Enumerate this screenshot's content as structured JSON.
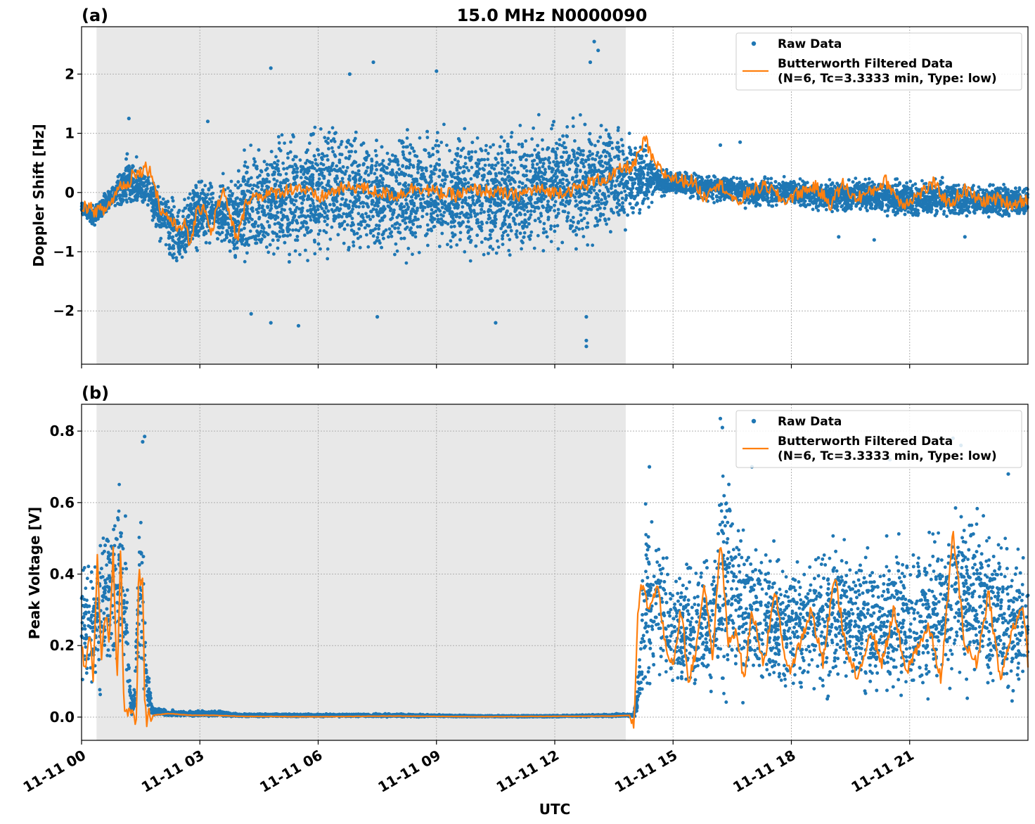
{
  "figure": {
    "title": "15.0 MHz N0000090",
    "xlabel": "UTC",
    "colors": {
      "raw": "#1f77b4",
      "filtered": "#ff7f0e",
      "night_shade": "#e8e8e8",
      "grid": "#b0b0b0"
    },
    "x_ticks": [
      "11-11 00",
      "11-11 03",
      "11-11 06",
      "11-11 09",
      "11-11 12",
      "11-11 15",
      "11-11 18",
      "11-11 21"
    ]
  },
  "legend": {
    "raw_label": "Raw Data",
    "filtered_label_line1": "Butterworth Filtered Data",
    "filtered_label_line2": "(N=6, Tc=3.3333 min, Type: low)"
  },
  "chart_data": [
    {
      "type": "scatter",
      "panel_label": "(a)",
      "title": "15.0 MHz N0000090",
      "xlabel": "UTC",
      "ylabel": "Doppler Shift [Hz]",
      "x_unit": "hours UTC on 11-11",
      "xlim": [
        0,
        24
      ],
      "ylim": [
        -2.9,
        2.8
      ],
      "y_ticks": [
        -2,
        -1,
        0,
        1,
        2
      ],
      "y_tick_labels": [
        "−2",
        "−1",
        "0",
        "1",
        "2"
      ],
      "grid": true,
      "legend_position": "top-right",
      "shaded_interval": [
        0.38,
        13.8
      ],
      "series": [
        {
          "name": "Raw Data",
          "style": "points",
          "envelope": {
            "x": [
              0,
              0.3,
              0.8,
              1.2,
              1.6,
              2.0,
              2.5,
              3.0,
              3.5,
              3.9,
              4.2,
              5,
              6,
              7,
              8,
              9,
              10,
              11,
              12,
              12.8,
              13.3,
              13.8,
              14.3,
              14.6,
              15,
              16,
              17,
              18,
              19,
              20,
              21,
              22,
              23,
              24
            ],
            "upper": [
              -0.1,
              -0.2,
              0.2,
              0.8,
              0.5,
              0.2,
              -0.1,
              0.5,
              0.3,
              0.5,
              1.0,
              1.3,
              1.4,
              1.3,
              1.2,
              1.3,
              1.2,
              1.3,
              1.4,
              1.5,
              1.4,
              1.2,
              1.0,
              0.5,
              0.4,
              0.4,
              0.3,
              0.3,
              0.3,
              0.3,
              0.3,
              0.3,
              0.2,
              0.2
            ],
            "lower": [
              -0.4,
              -0.6,
              -0.3,
              -0.5,
              -0.3,
              -1.0,
              -1.4,
              -1.1,
              -1.0,
              -1.5,
              -1.5,
              -1.5,
              -1.4,
              -1.3,
              -1.3,
              -1.2,
              -1.3,
              -1.3,
              -1.2,
              -1.1,
              -1.0,
              -0.7,
              -0.5,
              -0.1,
              -0.1,
              -0.2,
              -0.3,
              -0.3,
              -0.4,
              -0.4,
              -0.5,
              -0.5,
              -0.5,
              -0.5
            ]
          },
          "outliers": [
            [
              4.3,
              -2.05
            ],
            [
              4.8,
              -2.2
            ],
            [
              5.5,
              -2.25
            ],
            [
              7.5,
              -2.1
            ],
            [
              10.5,
              -2.2
            ],
            [
              12.8,
              -2.5
            ],
            [
              12.8,
              -2.6
            ],
            [
              12.8,
              -2.1
            ],
            [
              13.0,
              2.55
            ],
            [
              13.1,
              2.4
            ],
            [
              12.9,
              2.2
            ],
            [
              7.4,
              2.2
            ],
            [
              4.8,
              2.1
            ],
            [
              9.0,
              2.05
            ],
            [
              6.8,
              2.0
            ],
            [
              1.2,
              1.25
            ],
            [
              3.2,
              1.2
            ],
            [
              16.2,
              0.8
            ],
            [
              16.7,
              0.85
            ],
            [
              19.2,
              -0.75
            ],
            [
              20.1,
              -0.8
            ],
            [
              22.4,
              -0.75
            ]
          ]
        },
        {
          "name": "Butterworth Filtered Data",
          "style": "line",
          "x": [
            0,
            0.3,
            0.6,
            0.8,
            1.0,
            1.2,
            1.3,
            1.45,
            1.6,
            1.8,
            2.0,
            2.2,
            2.4,
            2.6,
            2.75,
            2.9,
            3.1,
            3.3,
            3.45,
            3.6,
            3.8,
            3.95,
            4.2,
            4.5,
            5.0,
            5.5,
            6.0,
            6.5,
            7.0,
            7.5,
            8.0,
            8.5,
            9.0,
            9.5,
            10.0,
            10.5,
            11.0,
            11.5,
            12.0,
            12.5,
            13.0,
            13.4,
            13.7,
            14.0,
            14.3,
            14.5,
            14.8,
            15.2,
            15.5,
            15.8,
            16.0,
            16.3,
            16.6,
            17.0,
            17.4,
            17.8,
            18.2,
            18.6,
            19.0,
            19.3,
            19.6,
            20.0,
            20.4,
            20.8,
            21.2,
            21.6,
            22.0,
            22.4,
            22.8,
            23.2,
            23.6,
            24.0
          ],
          "y": [
            -0.2,
            -0.3,
            -0.3,
            -0.1,
            0.15,
            0.1,
            0.4,
            0.3,
            0.45,
            0.3,
            -0.3,
            -0.4,
            -0.6,
            -0.5,
            -0.9,
            -0.4,
            -0.2,
            -0.7,
            -0.2,
            0.0,
            -0.5,
            -0.8,
            -0.1,
            -0.05,
            0.0,
            0.1,
            -0.1,
            0.05,
            0.1,
            0.0,
            -0.05,
            0.1,
            0.0,
            -0.05,
            0.05,
            0.0,
            -0.05,
            0.05,
            0.0,
            0.05,
            0.2,
            0.25,
            0.4,
            0.45,
            0.9,
            0.5,
            0.3,
            0.2,
            0.2,
            -0.1,
            0.15,
            0.1,
            -0.2,
            0.05,
            0.1,
            -0.15,
            0.0,
            0.1,
            -0.2,
            0.15,
            -0.1,
            0.0,
            0.2,
            -0.2,
            -0.05,
            0.15,
            -0.2,
            0.05,
            -0.15,
            -0.1,
            -0.2,
            -0.1
          ]
        }
      ]
    },
    {
      "type": "scatter",
      "panel_label": "(b)",
      "xlabel": "UTC",
      "ylabel": "Peak Voltage [V]",
      "x_unit": "hours UTC on 11-11",
      "xlim": [
        0,
        24
      ],
      "ylim": [
        -0.065,
        0.875
      ],
      "y_ticks": [
        0.0,
        0.2,
        0.4,
        0.6,
        0.8
      ],
      "y_tick_labels": [
        "0.0",
        "0.2",
        "0.4",
        "0.6",
        "0.8"
      ],
      "grid": true,
      "legend_position": "top-right",
      "shaded_interval": [
        0.38,
        13.8
      ],
      "series": [
        {
          "name": "Raw Data",
          "style": "points",
          "envelope": {
            "x": [
              0,
              0.3,
              0.6,
              0.9,
              1.1,
              1.25,
              1.35,
              1.45,
              1.55,
              1.65,
              1.8,
              2.5,
              3.5,
              4.0,
              6,
              8,
              10,
              12,
              13.5,
              14.0,
              14.1,
              14.3,
              14.6,
              15,
              16,
              16.2,
              17,
              18,
              19,
              20,
              21,
              22,
              22.5,
              23,
              24
            ],
            "upper": [
              0.55,
              0.45,
              0.62,
              0.68,
              0.7,
              0.05,
              0.1,
              0.6,
              0.7,
              0.2,
              0.03,
              0.02,
              0.02,
              0.01,
              0.01,
              0.01,
              0.005,
              0.005,
              0.01,
              0.01,
              0.1,
              0.65,
              0.6,
              0.45,
              0.5,
              0.8,
              0.55,
              0.5,
              0.55,
              0.5,
              0.55,
              0.6,
              0.7,
              0.6,
              0.5
            ],
            "lower": [
              0.02,
              0.05,
              0.03,
              0.05,
              0.0,
              0.0,
              0.0,
              0.05,
              0.05,
              0.0,
              0.0,
              0.0,
              0.0,
              0.0,
              0.0,
              0.0,
              0.0,
              0.0,
              0.0,
              0.0,
              0.0,
              0.05,
              0.05,
              0.02,
              0.02,
              0.01,
              0.01,
              0.01,
              0.01,
              0.01,
              0.01,
              0.01,
              0.01,
              0.01,
              0.01
            ]
          },
          "outliers": [
            [
              1.6,
              0.785
            ],
            [
              1.55,
              0.77
            ],
            [
              16.2,
              0.835
            ],
            [
              16.25,
              0.81
            ],
            [
              22.1,
              0.78
            ],
            [
              22.3,
              0.76
            ],
            [
              21.8,
              0.78
            ],
            [
              18.2,
              0.77
            ],
            [
              14.4,
              0.7
            ],
            [
              17.0,
              0.7
            ],
            [
              20.5,
              0.72
            ],
            [
              23.5,
              0.68
            ]
          ]
        },
        {
          "name": "Butterworth Filtered Data",
          "style": "line",
          "x": [
            0,
            0.1,
            0.2,
            0.3,
            0.4,
            0.5,
            0.6,
            0.7,
            0.8,
            0.9,
            1.0,
            1.05,
            1.1,
            1.2,
            1.3,
            1.4,
            1.45,
            1.5,
            1.55,
            1.6,
            1.65,
            1.7,
            1.8,
            2.2,
            2.8,
            3.4,
            4.0,
            6.0,
            8.0,
            10.0,
            12.0,
            13.5,
            13.9,
            14.0,
            14.05,
            14.1,
            14.2,
            14.4,
            14.6,
            14.8,
            15.0,
            15.2,
            15.4,
            15.6,
            15.8,
            16.0,
            16.2,
            16.4,
            16.6,
            16.8,
            17.0,
            17.3,
            17.6,
            17.9,
            18.2,
            18.5,
            18.8,
            19.1,
            19.4,
            19.7,
            20.0,
            20.3,
            20.6,
            20.9,
            21.2,
            21.5,
            21.8,
            22.1,
            22.4,
            22.7,
            23.0,
            23.3,
            23.6,
            23.9,
            24.0
          ],
          "y": [
            0.2,
            0.12,
            0.25,
            0.1,
            0.45,
            0.15,
            0.3,
            0.2,
            0.47,
            0.1,
            0.5,
            0.1,
            0.02,
            0.01,
            0.01,
            -0.02,
            0.45,
            0.35,
            0.4,
            0.05,
            -0.02,
            0.01,
            0.005,
            0.01,
            0.005,
            0.005,
            0.002,
            0.001,
            0.003,
            0.001,
            0.002,
            0.003,
            0.005,
            -0.02,
            0.1,
            0.3,
            0.37,
            0.3,
            0.38,
            0.2,
            0.15,
            0.3,
            0.1,
            0.2,
            0.38,
            0.15,
            0.5,
            0.2,
            0.25,
            0.1,
            0.3,
            0.15,
            0.35,
            0.12,
            0.2,
            0.3,
            0.15,
            0.4,
            0.18,
            0.1,
            0.25,
            0.15,
            0.3,
            0.12,
            0.2,
            0.25,
            0.1,
            0.52,
            0.2,
            0.15,
            0.35,
            0.1,
            0.25,
            0.3,
            0.15
          ]
        }
      ]
    }
  ]
}
